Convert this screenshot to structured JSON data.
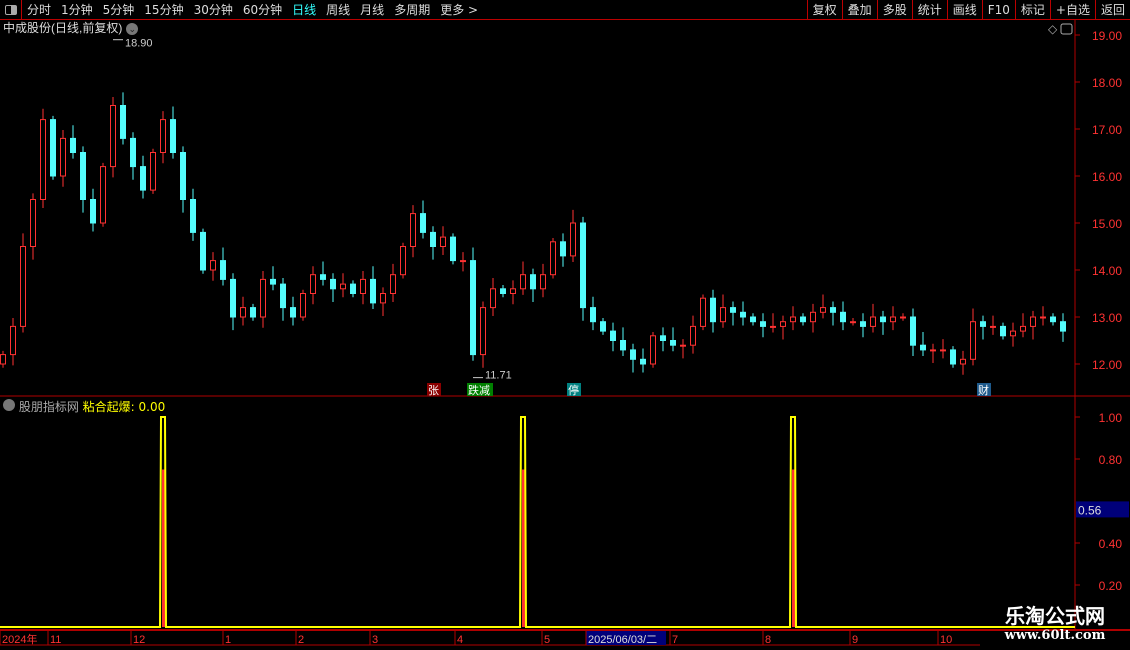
{
  "toolbar": {
    "tabs": [
      "分时",
      "1分钟",
      "5分钟",
      "15分钟",
      "30分钟",
      "60分钟",
      "日线",
      "周线",
      "月线",
      "多周期",
      "更多 >"
    ],
    "active": "日线",
    "right_buttons": [
      "复权",
      "叠加",
      "多股",
      "统计",
      "画线",
      "F10",
      "标记",
      "+自选",
      "返回"
    ]
  },
  "main_title": "中成股份(日线,前复权)",
  "indicator_title": {
    "source": "股朋指标网",
    "name_value": "粘合起爆: 0.00"
  },
  "colors": {
    "up": "#ff3232",
    "down": "#54fcfc",
    "indicator": "#ffff00",
    "axis": "#b00000"
  },
  "chart_data": [
    {
      "type": "candlestick",
      "y_ticks": [
        "19.00",
        "18.00",
        "17.00",
        "16.00",
        "15.00",
        "14.00",
        "13.00",
        "12.00"
      ],
      "ylim": [
        11.6,
        19.2
      ],
      "closes": [
        12.2,
        12.8,
        14.5,
        15.5,
        17.2,
        16,
        16.8,
        16.5,
        15.5,
        15,
        16.2,
        17.5,
        16.8,
        16.2,
        15.7,
        16.5,
        17.2,
        16.5,
        15.5,
        14.8,
        14,
        14.2,
        13.8,
        13,
        13.2,
        13,
        13.8,
        13.7,
        13.2,
        13,
        13.5,
        13.9,
        13.8,
        13.6,
        13.7,
        13.5,
        13.8,
        13.3,
        13.5,
        13.9,
        14.5,
        15.2,
        14.8,
        14.5,
        14.7,
        14.2,
        14.2,
        12.2,
        13.2,
        13.6,
        13.5,
        13.6,
        13.9,
        13.6,
        13.9,
        14.6,
        14.3,
        15,
        13.2,
        12.9,
        12.7,
        12.5,
        12.3,
        12.1,
        12,
        12.6,
        12.5,
        12.4,
        12.4,
        12.8,
        13.4,
        12.9,
        13.2,
        13.1,
        13,
        12.9,
        12.8,
        12.8,
        12.9,
        13,
        12.9,
        13.1,
        13.2,
        13.1,
        12.9,
        12.9,
        12.8,
        13,
        12.9,
        13,
        13,
        12.4,
        12.3,
        12.3,
        12.3,
        12,
        12.1,
        12.9,
        12.8,
        12.8,
        12.6,
        12.7,
        12.8,
        13,
        13,
        12.9,
        12.7
      ],
      "annotations": [
        {
          "bar": 11,
          "price": 18.9,
          "text": "18.90"
        },
        {
          "bar": 47,
          "price": 11.71,
          "text": "11.71"
        }
      ],
      "markers": [
        {
          "bar": 43,
          "text": "张",
          "color": "#8b0000"
        },
        {
          "bar": 47,
          "text": "跌减",
          "color": "#008000"
        },
        {
          "bar": 57,
          "text": "停",
          "color": "#008080"
        },
        {
          "bar": 98,
          "text": "财",
          "color": "#1e5a8c"
        }
      ]
    },
    {
      "type": "line",
      "name": "粘合起爆",
      "y_ticks": [
        "1.00",
        "0.80",
        "0.40",
        "0.20"
      ],
      "ylim": [
        0,
        1.05
      ],
      "current_label": "0.56",
      "spike_bars": [
        16,
        52,
        79
      ],
      "spike_value": 1.0
    }
  ],
  "date_axis": [
    "2024年",
    "11",
    "12",
    "1",
    "2",
    "3",
    "4",
    "5",
    "2025/06/03/二",
    "7",
    "8",
    "9",
    "10"
  ],
  "watermark": {
    "line1": "乐淘公式网",
    "line2": "www.60lt.com"
  }
}
